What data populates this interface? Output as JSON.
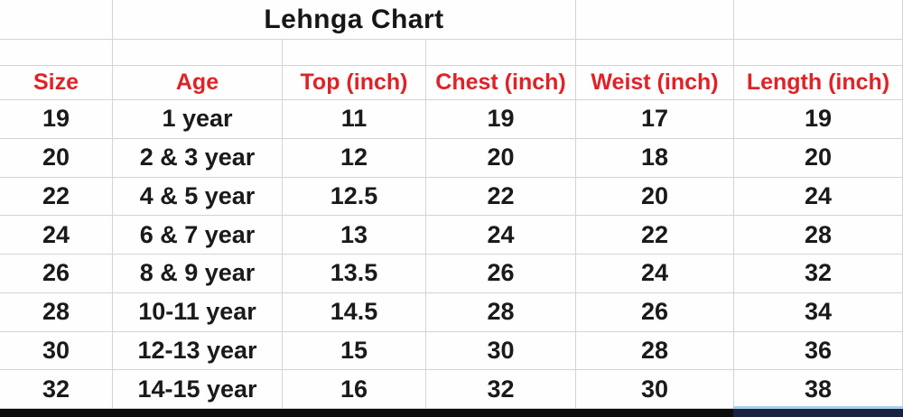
{
  "title": "Lehnga Chart",
  "table": {
    "headers": [
      "Size",
      "Age",
      "Top (inch)",
      "Chest (inch)",
      "Weist (inch)",
      "Length (inch)"
    ],
    "rows": [
      [
        "19",
        "1 year",
        "11",
        "19",
        "17",
        "19"
      ],
      [
        "20",
        "2 & 3 year",
        "12",
        "20",
        "18",
        "20"
      ],
      [
        "22",
        "4 & 5 year",
        "12.5",
        "22",
        "20",
        "24"
      ],
      [
        "24",
        "6 & 7 year",
        "13",
        "24",
        "22",
        "28"
      ],
      [
        "26",
        "8 & 9 year",
        "13.5",
        "26",
        "24",
        "32"
      ],
      [
        "28",
        "10-11 year",
        "14.5",
        "28",
        "26",
        "34"
      ],
      [
        "30",
        "12-13 year",
        "15",
        "30",
        "28",
        "36"
      ],
      [
        "32",
        "14-15 year",
        "16",
        "32",
        "30",
        "38"
      ]
    ]
  },
  "colors": {
    "accent-red": "#e02227",
    "grid-line": "#d4d4d4",
    "bar-black": "#0d0d0d",
    "bar-navy": "#16223f",
    "bar-lightblue": "#aacdea"
  }
}
